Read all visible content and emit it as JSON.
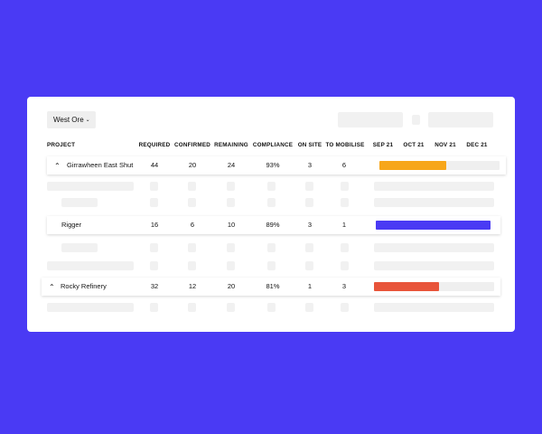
{
  "filter": {
    "label": "West Ore",
    "chevron": "chevron-down-icon"
  },
  "columns": {
    "project": "PROJECT",
    "required": "REQUIRED",
    "confirmed": "CONFIRMED",
    "remaining": "REMAINING",
    "compliance": "COMPLIANCE",
    "on_site": "ON SITE",
    "to_mobilise": "TO MOBILISE",
    "timeline": [
      "SEP 21",
      "OCT 21",
      "NOV 21",
      "DEC 21"
    ]
  },
  "rows": [
    {
      "name": "Girrawheen East Shut",
      "required": "44",
      "confirmed": "20",
      "remaining": "24",
      "compliance": "93%",
      "on_site": "3",
      "to_mobilise": "6",
      "progress": 0.56,
      "color": "#f7a61a",
      "expanded": true
    },
    {
      "name": "Rigger",
      "required": "16",
      "confirmed": "6",
      "remaining": "10",
      "compliance": "89%",
      "on_site": "3",
      "to_mobilise": "1",
      "progress": 1.0,
      "color": "#4a3af4"
    },
    {
      "name": "Rocky Refinery",
      "required": "32",
      "confirmed": "12",
      "remaining": "20",
      "compliance": "81%",
      "on_site": "1",
      "to_mobilise": "3",
      "progress": 0.54,
      "color": "#e8543a",
      "expanded": true
    }
  ]
}
